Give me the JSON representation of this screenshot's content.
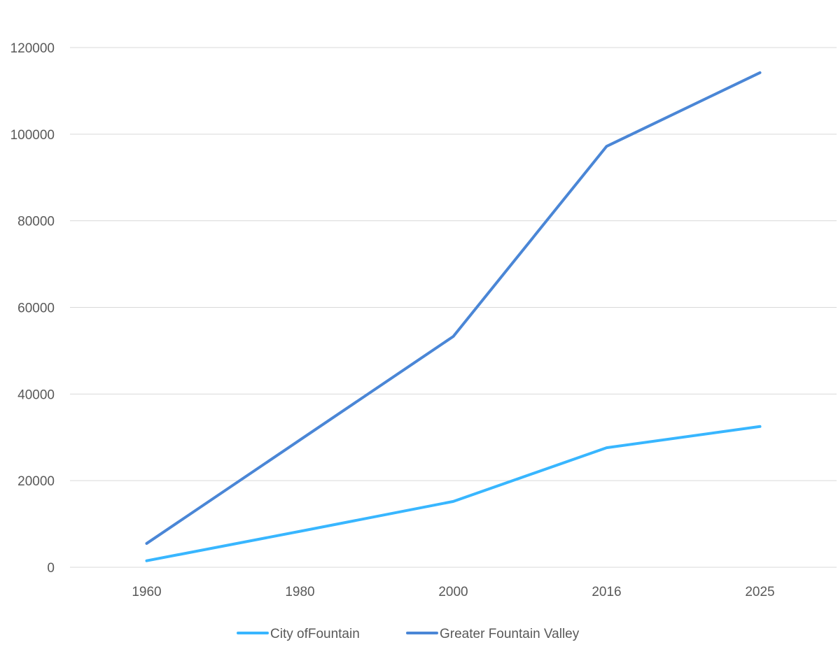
{
  "chart_data": {
    "type": "line",
    "title": "",
    "xlabel": "",
    "ylabel": "",
    "categories": [
      "1960",
      "1980",
      "2000",
      "2016",
      "2025"
    ],
    "ylim": [
      0,
      120000
    ],
    "yticks": [
      "0",
      "20000",
      "40000",
      "60000",
      "80000",
      "100000",
      "120000"
    ],
    "grid": "horizontal",
    "legend": "bottom",
    "series": [
      {
        "name": "City ofFountain",
        "color": "#38B6FF",
        "values": [
          1500,
          8300,
          15200,
          27600,
          32500
        ]
      },
      {
        "name": "Greater Fountain Valley",
        "color": "#4A86D6",
        "values": [
          5500,
          29400,
          53300,
          97200,
          114200
        ]
      }
    ]
  }
}
